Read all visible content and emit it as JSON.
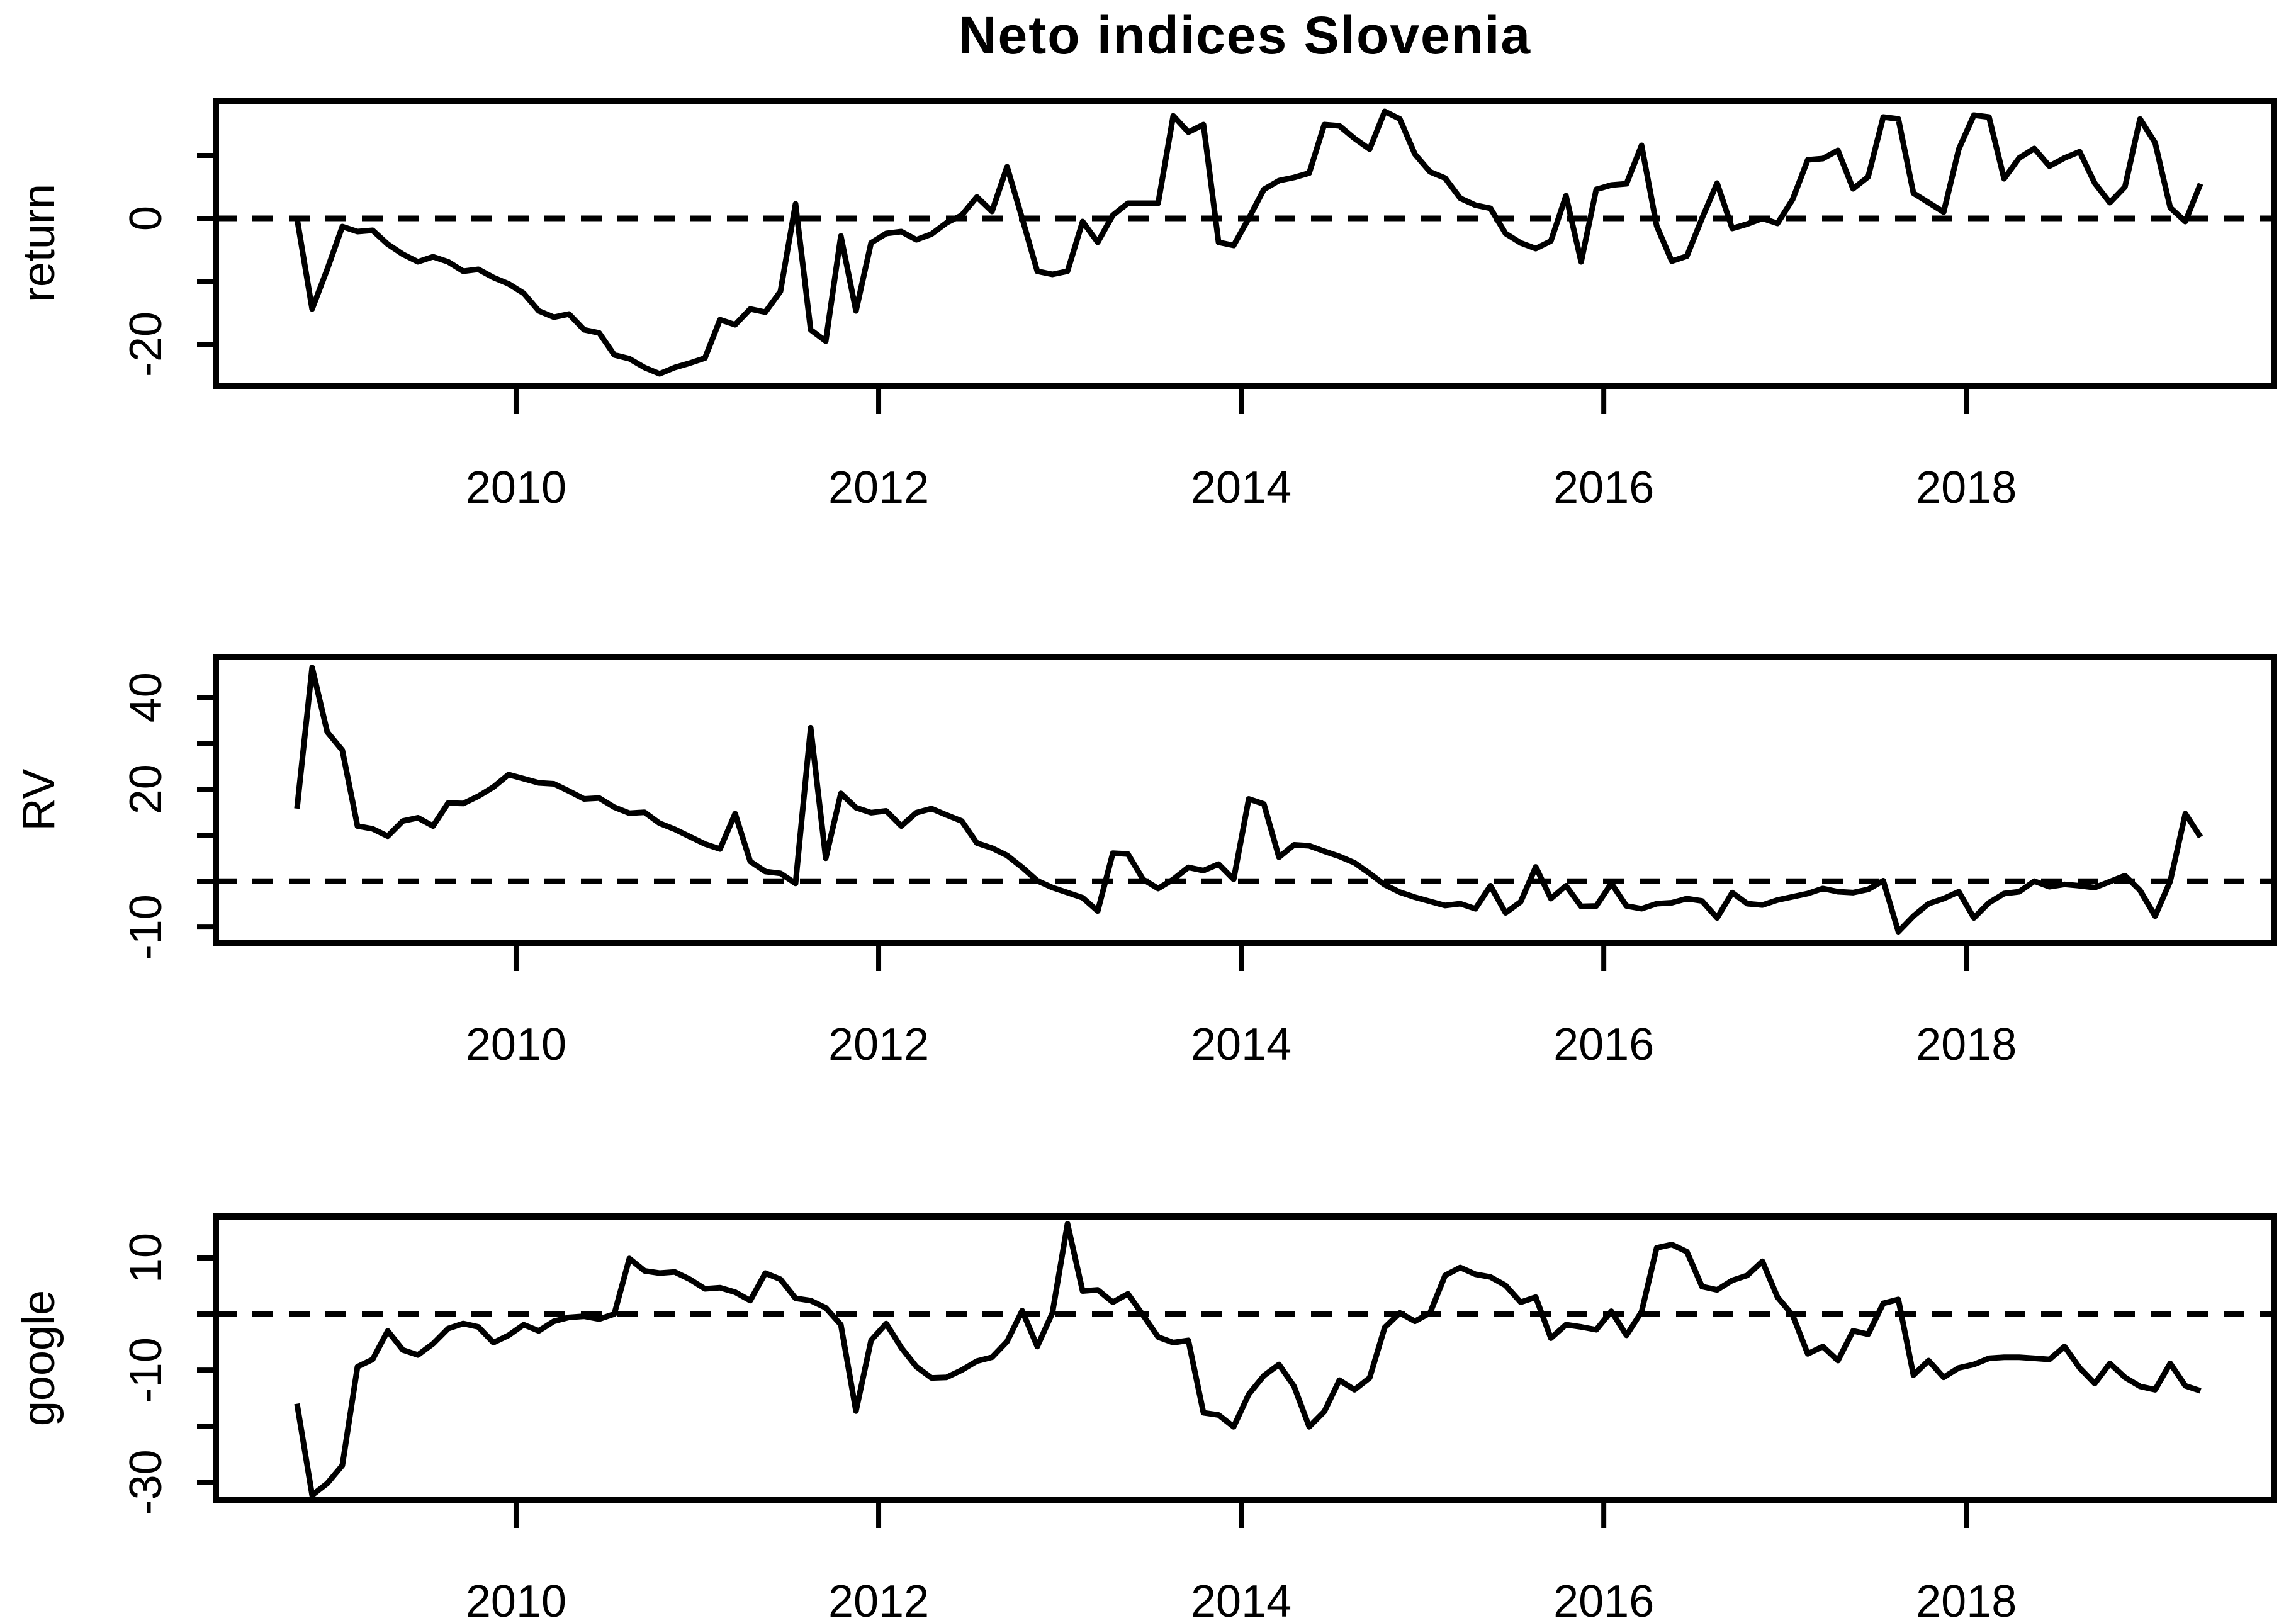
{
  "title": "Neto indices Slovenia",
  "chart_data": {
    "type": "line",
    "title": "Neto indices Slovenia",
    "series_color": "#000000",
    "background": "#ffffff",
    "x_start": "2008-10",
    "x_frequency": "monthly",
    "n_points": 127,
    "xlim": [
      2008.344,
      2019.697
    ],
    "x_ticks": [
      2010,
      2012,
      2014,
      2016,
      2018
    ],
    "x_tick_labels": [
      "2010",
      "2012",
      "2014",
      "2016",
      "2018"
    ],
    "grid": false,
    "legend": "none",
    "ref_line_style": "dashed",
    "panels": [
      {
        "name": "return",
        "ylabel": "return",
        "ylim": [
          -26.6,
          18.7
        ],
        "yticks": [
          10,
          0,
          -10,
          -20
        ],
        "ytick_labels": [
          "",
          "0",
          "",
          "-20"
        ],
        "ref_line": 0,
        "values": [
          0,
          -14.4,
          -8.1,
          -1.3,
          -2.1,
          -1.9,
          -4.1,
          -5.7,
          -6.9,
          -6.1,
          -6.9,
          -8.4,
          -8.1,
          -9.4,
          -10.4,
          -11.9,
          -14.7,
          -15.7,
          -15.2,
          -17.7,
          -18.2,
          -21.7,
          -22.3,
          -23.7,
          -24.7,
          -23.7,
          -23.0,
          -22.2,
          -16.1,
          -16.9,
          -14.4,
          -14.9,
          -11.6,
          2.3,
          -17.7,
          -19.5,
          -2.8,
          -14.7,
          -3.9,
          -2.4,
          -2.1,
          -3.4,
          -2.5,
          -0.7,
          0.5,
          3.4,
          1.1,
          8.2,
          0.0,
          -8.4,
          -8.9,
          -8.4,
          -0.5,
          -3.8,
          0.5,
          2.4,
          2.4,
          2.4,
          16.3,
          13.7,
          14.9,
          -3.8,
          -4.3,
          0.0,
          4.6,
          6.0,
          6.5,
          7.2,
          14.9,
          14.7,
          12.7,
          11.0,
          17.0,
          15.8,
          10.2,
          7.4,
          6.4,
          3.2,
          2.1,
          1.6,
          -2.4,
          -3.9,
          -4.8,
          -3.6,
          3.6,
          -6.9,
          4.6,
          5.3,
          5.5,
          11.6,
          -1.2,
          -6.8,
          -6.0,
          0.0,
          5.6,
          -1.6,
          -0.9,
          0.0,
          -0.8,
          3.0,
          9.3,
          9.5,
          10.8,
          4.7,
          6.6,
          16.1,
          15.8,
          4.0,
          2.5,
          1.0,
          11.0,
          16.4,
          16.1,
          6.3,
          9.6,
          11.1,
          8.3,
          9.6,
          10.6,
          5.6,
          2.5,
          5.0,
          15.8,
          12.0,
          1.7,
          -0.5,
          5.5
        ]
      },
      {
        "name": "RV",
        "ylabel": "RV",
        "ylim": [
          -13.4,
          48.8
        ],
        "yticks": [
          40,
          30,
          20,
          10,
          0,
          -10
        ],
        "ytick_labels": [
          "40",
          "",
          "20",
          "",
          "",
          "-10"
        ],
        "ref_line": 0,
        "values": [
          15.8,
          46.5,
          32.5,
          28.5,
          12.0,
          11.4,
          9.8,
          13.1,
          13.8,
          12.0,
          17.0,
          16.9,
          18.5,
          20.5,
          23.2,
          22.3,
          21.4,
          21.2,
          19.6,
          17.9,
          18.1,
          16.1,
          14.8,
          15.0,
          12.6,
          11.3,
          9.7,
          8.1,
          7.0,
          14.7,
          4.3,
          2.1,
          1.7,
          -0.5,
          33.4,
          5.0,
          19.1,
          16.0,
          14.9,
          15.3,
          12.0,
          14.9,
          15.8,
          14.4,
          13.1,
          8.3,
          7.2,
          5.6,
          3.0,
          0.1,
          -1.4,
          -2.5,
          -3.6,
          -6.5,
          6.1,
          5.9,
          0.4,
          -1.6,
          0.4,
          3.0,
          2.3,
          3.7,
          0.4,
          17.9,
          16.8,
          5.2,
          7.9,
          7.7,
          6.5,
          5.4,
          4.0,
          1.7,
          -0.8,
          -2.4,
          -3.5,
          -4.4,
          -5.3,
          -4.9,
          -6.0,
          -1.0,
          -6.9,
          -4.5,
          3.1,
          -3.8,
          -1.0,
          -5.5,
          -5.4,
          -0.5,
          -5.4,
          -6.0,
          -4.9,
          -4.7,
          -3.8,
          -4.3,
          -8.0,
          -2.5,
          -4.9,
          -5.2,
          -4.1,
          -3.4,
          -2.7,
          -1.6,
          -2.3,
          -2.5,
          -1.8,
          0.1,
          -11.0,
          -7.6,
          -4.9,
          -3.8,
          -2.3,
          -8.0,
          -4.7,
          -2.7,
          -2.3,
          0.0,
          -1.2,
          -0.7,
          -1.0,
          -1.4,
          -0.1,
          1.2,
          -2.0,
          -7.6,
          0.0,
          14.7,
          9.6
        ]
      },
      {
        "name": "google",
        "ylabel": "google",
        "ylim": [
          -33.1,
          17.4
        ],
        "yticks": [
          10,
          0,
          -10,
          -20,
          -30
        ],
        "ytick_labels": [
          "10",
          "",
          "-10",
          "",
          "-30"
        ],
        "ref_line": 0,
        "values": [
          -16.0,
          -32.3,
          -30.2,
          -27.0,
          -9.4,
          -8.1,
          -3.0,
          -6.4,
          -7.3,
          -5.3,
          -2.6,
          -1.7,
          -2.3,
          -5.1,
          -3.8,
          -1.9,
          -3.0,
          -1.3,
          -0.6,
          -0.4,
          -0.9,
          0.0,
          9.9,
          7.7,
          7.3,
          7.5,
          6.2,
          4.5,
          4.7,
          3.9,
          2.4,
          7.3,
          6.2,
          2.8,
          2.4,
          1.1,
          -1.9,
          -17.3,
          -4.7,
          -1.7,
          -6.0,
          -9.4,
          -11.4,
          -11.3,
          -10.0,
          -8.4,
          -7.7,
          -4.9,
          0.6,
          -5.8,
          0.2,
          16.1,
          4.1,
          4.3,
          2.1,
          3.6,
          -0.2,
          -4.1,
          -5.1,
          -4.7,
          -17.6,
          -18.0,
          -20.1,
          -14.3,
          -11.0,
          -9.0,
          -12.9,
          -20.1,
          -17.4,
          -11.8,
          -13.5,
          -11.4,
          -2.4,
          0.2,
          -1.3,
          0.2,
          6.9,
          8.3,
          7.1,
          6.6,
          5.1,
          2.1,
          3.0,
          -4.3,
          -1.9,
          -2.3,
          -2.8,
          0.5,
          -3.8,
          0.4,
          11.8,
          12.4,
          11.1,
          4.9,
          4.3,
          6.0,
          6.9,
          9.4,
          3.0,
          -0.2,
          -7.1,
          -5.8,
          -8.3,
          -3.0,
          -3.6,
          1.9,
          2.6,
          -10.9,
          -8.3,
          -11.3,
          -9.6,
          -9.0,
          -7.9,
          -7.7,
          -7.7,
          -7.9,
          -8.1,
          -5.8,
          -9.6,
          -12.4,
          -8.8,
          -11.3,
          -12.9,
          -13.5,
          -8.8,
          -12.8,
          -13.7
        ]
      }
    ]
  }
}
